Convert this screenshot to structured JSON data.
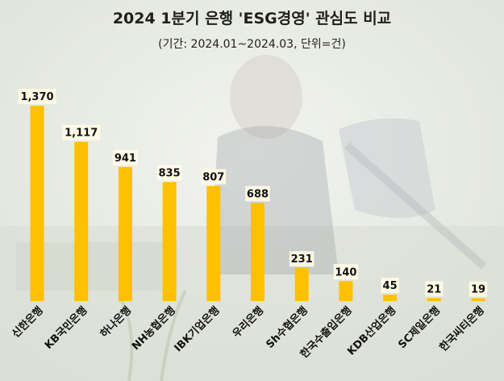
{
  "title": "2024 1분기 은행 'ESG경영' 관심도 비교",
  "subtitle": "(기간: 2024.01~2024.03, 단위=건)",
  "colors": {
    "bar": "#FFC000",
    "background": "#e9ece6"
  },
  "chart_data": {
    "type": "bar",
    "title": "2024 1분기 은행 'ESG경영' 관심도 비교",
    "subtitle": "(기간: 2024.01~2024.03, 단위=건)",
    "categories": [
      "신한은행",
      "KB국민은행",
      "하나은행",
      "NH농협은행",
      "IBK기업은행",
      "우리은행",
      "Sh수협은행",
      "한국수출입은행",
      "KDB산업은행",
      "SC제일은행",
      "한국씨티은행"
    ],
    "values": [
      1370,
      1117,
      941,
      835,
      807,
      688,
      231,
      140,
      45,
      21,
      19
    ],
    "value_labels": [
      "1,370",
      "1,117",
      "941",
      "835",
      "807",
      "688",
      "231",
      "140",
      "45",
      "21",
      "19"
    ],
    "ylim": [
      0,
      1370
    ],
    "grid": false,
    "legend": "none"
  }
}
